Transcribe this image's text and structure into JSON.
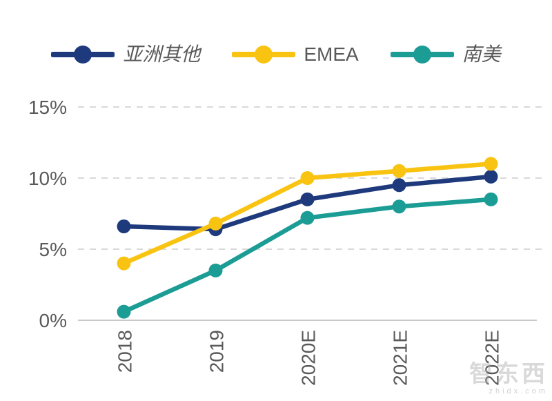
{
  "chart_data": {
    "type": "line",
    "categories": [
      "2018",
      "2019",
      "2020E",
      "2021E",
      "2022E"
    ],
    "series": [
      {
        "name": "亚洲其他",
        "color": "#1E3A7D",
        "values": [
          6.6,
          6.4,
          8.5,
          9.5,
          10.1
        ]
      },
      {
        "name": "EMEA",
        "color": "#F9C312",
        "values": [
          4.0,
          6.8,
          10.0,
          10.5,
          11.0
        ]
      },
      {
        "name": "南美",
        "color": "#1B9C95",
        "values": [
          0.6,
          3.5,
          7.2,
          8.0,
          8.5
        ]
      }
    ],
    "title": "",
    "xlabel": "",
    "ylabel": "",
    "ylim": [
      0,
      15
    ],
    "yticks": [
      0,
      5,
      10,
      15
    ],
    "ytick_labels": [
      "0%",
      "5%",
      "10%",
      "15%"
    ],
    "grid": "horizontal-dashed",
    "legend_position": "top",
    "colors": {
      "gridline": "#D9D9D9",
      "axis_line": "#C9C9C9",
      "tick_text": "#595959"
    }
  },
  "watermark": {
    "title": "智东西",
    "domain": "zhidx.com"
  }
}
